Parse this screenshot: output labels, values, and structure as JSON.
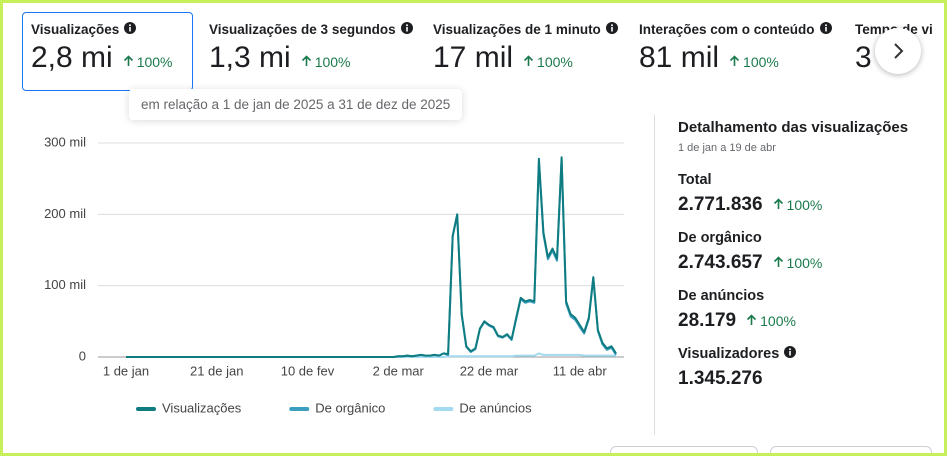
{
  "metrics": [
    {
      "label": "Visualizações",
      "value": "2,8 mi",
      "change": "100%"
    },
    {
      "label": "Visualizações de 3 segundos",
      "value": "1,3 mi",
      "change": "100%"
    },
    {
      "label": "Visualizações de 1 minuto",
      "value": "17 mil",
      "change": "100%"
    },
    {
      "label": "Interações com o conteúdo",
      "value": "81 mil",
      "change": "100%"
    },
    {
      "label": "Tempo de vi",
      "value": "3"
    }
  ],
  "tooltip": "em relação a 1 de jan de 2025 a 31 de dez de 2025",
  "chart_data": {
    "type": "line",
    "x": [
      0,
      59,
      60,
      61,
      62,
      63,
      64,
      65,
      66,
      67,
      68,
      69,
      70,
      71,
      72,
      73,
      74,
      75,
      76,
      77,
      78,
      79,
      80,
      81,
      82,
      83,
      84,
      85,
      86,
      87,
      88,
      89,
      90,
      91,
      92,
      93,
      94,
      95,
      96,
      97,
      98,
      99,
      100,
      101,
      102,
      103,
      104,
      105,
      106,
      107,
      108
    ],
    "xlim": [
      0,
      108
    ],
    "xticks": [
      {
        "value": 0,
        "label": "1 de jan"
      },
      {
        "value": 20,
        "label": "21 de jan"
      },
      {
        "value": 40,
        "label": "10 de fev"
      },
      {
        "value": 60,
        "label": "2 de mar"
      },
      {
        "value": 80,
        "label": "22 de mar"
      },
      {
        "value": 100,
        "label": "11 de abr"
      }
    ],
    "ylim": [
      0,
      300000
    ],
    "yticks": [
      0,
      {
        "value": 100000,
        "label": "100 mil"
      },
      {
        "value": 200000,
        "label": "200 mil"
      },
      {
        "value": 300000,
        "label": "300 mil"
      }
    ],
    "grid": true,
    "series": [
      {
        "name": "Visualizações",
        "color": "#0e7c80",
        "values": [
          0,
          0,
          1000,
          1000,
          2000,
          1000,
          2000,
          3000,
          2000,
          2000,
          3000,
          2000,
          5000,
          4000,
          170000,
          200000,
          60000,
          15000,
          8000,
          12000,
          40000,
          50000,
          45000,
          42000,
          30000,
          28000,
          32000,
          25000,
          55000,
          83000,
          78000,
          80000,
          78000,
          278000,
          175000,
          140000,
          152000,
          138000,
          280000,
          78000,
          60000,
          55000,
          45000,
          35000,
          55000,
          112000,
          38000,
          20000,
          12000,
          15000,
          5000
        ]
      },
      {
        "name": "De orgânico",
        "color": "#3d9fc0",
        "values": [
          0,
          0,
          1000,
          1000,
          2000,
          1000,
          2000,
          3000,
          2000,
          2000,
          3000,
          2000,
          5000,
          3000,
          169000,
          199000,
          59000,
          14000,
          7000,
          11000,
          39000,
          49000,
          44000,
          41000,
          29000,
          27000,
          31000,
          24000,
          53000,
          81000,
          76000,
          78000,
          76000,
          273000,
          172000,
          137000,
          149000,
          135000,
          277000,
          75000,
          57000,
          52000,
          42000,
          33000,
          53000,
          110000,
          36000,
          18000,
          10000,
          13000,
          3000
        ]
      },
      {
        "name": "De anúncios",
        "color": "#a3daf0",
        "values": [
          0,
          0,
          0,
          0,
          0,
          0,
          0,
          0,
          0,
          0,
          0,
          0,
          0,
          1000,
          1000,
          1000,
          1000,
          1000,
          1000,
          1000,
          1000,
          1000,
          1000,
          1000,
          1000,
          1000,
          1000,
          1000,
          2000,
          2000,
          2000,
          2000,
          2000,
          5000,
          3000,
          3000,
          3000,
          3000,
          3000,
          3000,
          3000,
          3000,
          3000,
          2000,
          2000,
          2000,
          2000,
          2000,
          2000,
          2000,
          2000
        ]
      }
    ]
  },
  "breakdown": {
    "title": "Detalhamento das visualizações",
    "subtitle": "1 de jan a 19 de abr",
    "items": [
      {
        "label": "Total",
        "value": "2.771.836",
        "change": "100%"
      },
      {
        "label": "De orgânico",
        "value": "2.743.657",
        "change": "100%"
      },
      {
        "label": "De anúncios",
        "value": "28.179",
        "change": "100%"
      },
      {
        "label": "Visualizadores",
        "value": "1.345.276"
      }
    ]
  }
}
